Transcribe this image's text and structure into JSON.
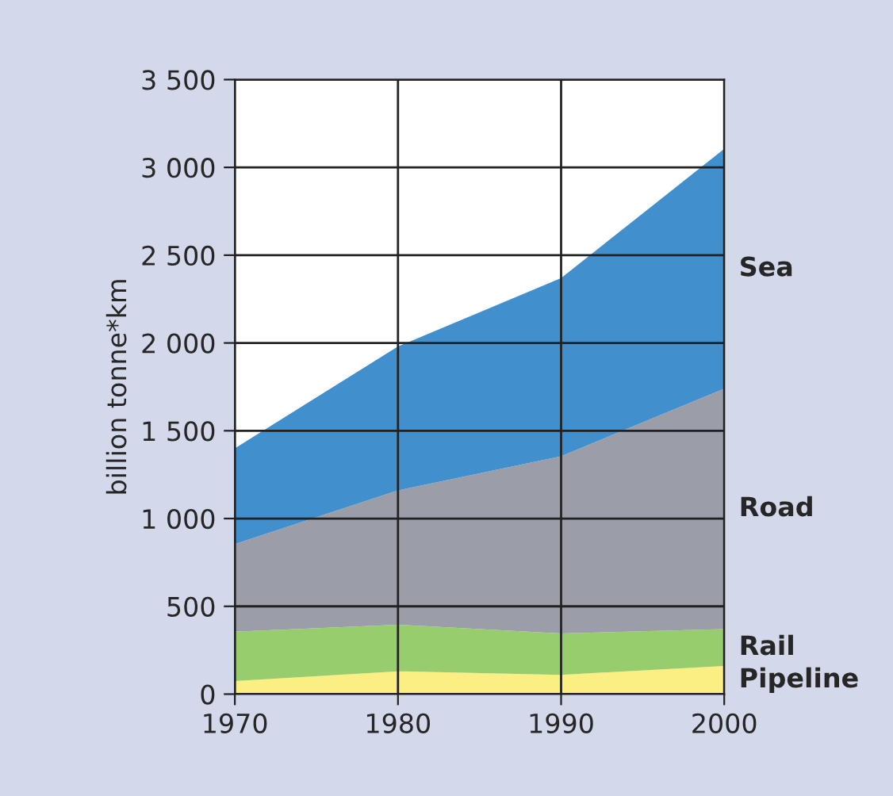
{
  "chart_data": {
    "type": "area",
    "stacked": true,
    "ylabel": "billion tonne*km",
    "x": [
      1970,
      1980,
      1990,
      2000
    ],
    "series": [
      {
        "name": "Pipeline",
        "color": "#fbee82",
        "values": [
          75,
          130,
          110,
          160
        ]
      },
      {
        "name": "Rail",
        "color": "#97cd6d",
        "values": [
          280,
          265,
          235,
          210
        ]
      },
      {
        "name": "Road",
        "color": "#9b9ea9",
        "values": [
          500,
          765,
          1010,
          1370
        ]
      },
      {
        "name": "Sea",
        "color": "#418fcc",
        "values": [
          545,
          820,
          1015,
          1365
        ]
      }
    ],
    "xlim": [
      1970,
      2000
    ],
    "xticks": [
      1970,
      1980,
      1990,
      2000
    ],
    "ylim": [
      0,
      3500
    ],
    "yticks": [
      {
        "value": 0,
        "label": "0"
      },
      {
        "value": 500,
        "label": "500"
      },
      {
        "value": 1000,
        "label": "1 000"
      },
      {
        "value": 1500,
        "label": "1 500"
      },
      {
        "value": 2000,
        "label": "2 000"
      },
      {
        "value": 2500,
        "label": "2 500"
      },
      {
        "value": 3000,
        "label": "3 000"
      },
      {
        "value": 3500,
        "label": "3 500"
      }
    ],
    "grid": true,
    "legend": false
  }
}
